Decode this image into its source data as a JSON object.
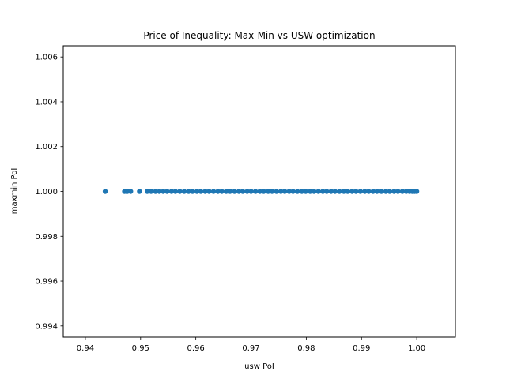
{
  "chart_data": {
    "type": "scatter",
    "title": "Price of Inequality: Max-Min vs USW optimization",
    "xlabel": "usw PoI",
    "ylabel": "maxmin PoI",
    "xlim": [
      0.936,
      1.007
    ],
    "ylim": [
      0.9935,
      1.0065
    ],
    "xticks": [
      0.94,
      0.95,
      0.96,
      0.97,
      0.98,
      0.99,
      1.0
    ],
    "xtick_labels": [
      "0.94",
      "0.95",
      "0.96",
      "0.97",
      "0.98",
      "0.99",
      "1.00"
    ],
    "yticks": [
      0.994,
      0.996,
      0.998,
      1.0,
      1.002,
      1.004,
      1.006
    ],
    "ytick_labels": [
      "0.994",
      "0.996",
      "0.998",
      "1.000",
      "1.002",
      "1.004",
      "1.006"
    ],
    "grid": false,
    "legend": "none",
    "point_color": "#1f77b4",
    "series": [
      {
        "x": [
          0.9436,
          0.9471,
          0.9476,
          0.9482,
          0.9498,
          0.9512,
          0.9519,
          0.9527,
          0.9534,
          0.9541,
          0.9548,
          0.9556,
          0.9563,
          0.9571,
          0.9579,
          0.9587,
          0.9594,
          0.9602,
          0.9609,
          0.9617,
          0.9624,
          0.9632,
          0.964,
          0.9647,
          0.9655,
          0.9662,
          0.967,
          0.9678,
          0.9685,
          0.9693,
          0.97,
          0.9708,
          0.9716,
          0.9723,
          0.9731,
          0.9738,
          0.9746,
          0.9754,
          0.9761,
          0.9769,
          0.9776,
          0.9784,
          0.9792,
          0.9799,
          0.9807,
          0.9814,
          0.9822,
          0.983,
          0.9837,
          0.9845,
          0.9852,
          0.986,
          0.9868,
          0.9875,
          0.9883,
          0.989,
          0.9898,
          0.9906,
          0.9913,
          0.9921,
          0.9928,
          0.9936,
          0.9944,
          0.9951,
          0.9959,
          0.9966,
          0.9974,
          0.9981,
          0.9987,
          0.9992,
          0.9996,
          1.0
        ],
        "y": [
          1.0,
          1.0,
          1.0,
          1.0,
          1.0,
          1.0,
          1.0,
          1.0,
          1.0,
          1.0,
          1.0,
          1.0,
          1.0,
          1.0,
          1.0,
          1.0,
          1.0,
          1.0,
          1.0,
          1.0,
          1.0,
          1.0,
          1.0,
          1.0,
          1.0,
          1.0,
          1.0,
          1.0,
          1.0,
          1.0,
          1.0,
          1.0,
          1.0,
          1.0,
          1.0,
          1.0,
          1.0,
          1.0,
          1.0,
          1.0,
          1.0,
          1.0,
          1.0,
          1.0,
          1.0,
          1.0,
          1.0,
          1.0,
          1.0,
          1.0,
          1.0,
          1.0,
          1.0,
          1.0,
          1.0,
          1.0,
          1.0,
          1.0,
          1.0,
          1.0,
          1.0,
          1.0,
          1.0,
          1.0,
          1.0,
          1.0,
          1.0,
          1.0,
          1.0,
          1.0,
          1.0,
          1.0
        ]
      }
    ]
  }
}
